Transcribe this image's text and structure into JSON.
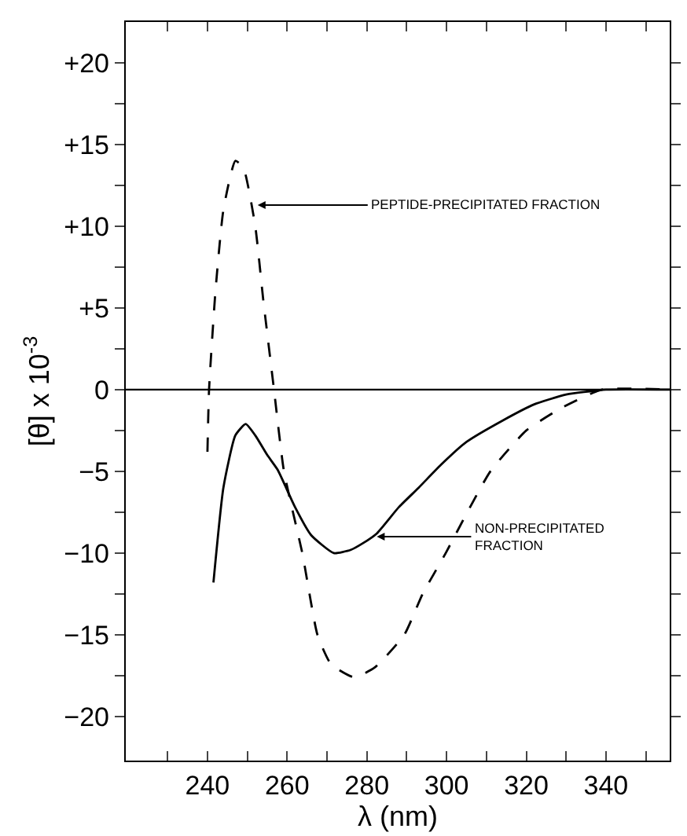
{
  "chart_data": {
    "type": "line",
    "xlabel": "λ (nm)",
    "ylabel": "[θ] x 10$^{-3}$",
    "x": [
      241.5,
      244,
      247,
      249.6,
      252,
      255,
      257.6,
      262,
      266,
      271.7,
      276,
      279,
      282.5,
      288,
      293,
      298.6,
      305,
      314,
      322,
      330,
      340,
      356
    ],
    "series": [
      {
        "color": "#000000",
        "line_style": "solid",
        "values": [
          -11.8,
          -6,
          -2.8,
          -2.1,
          -2.8,
          -4,
          -4.9,
          -7.2,
          -8.9,
          -10,
          -9.8,
          -9.4,
          -8.8,
          -7.2,
          -6,
          -4.6,
          -3.2,
          -1.9,
          -0.9,
          -0.3,
          0,
          0
        ]
      },
      {
        "color": "#000000",
        "line_style": "dashed",
        "x": [
          240,
          240.4,
          242,
          244,
          247,
          249,
          252,
          254,
          256.7,
          259.2,
          263.8,
          267.6,
          271,
          276.8,
          282,
          289.4,
          294,
          299.8,
          305,
          311,
          320,
          329,
          339,
          356
        ],
        "values": [
          -3.8,
          0,
          6,
          11,
          14,
          13.6,
          10,
          5.5,
          0,
          -5,
          -10,
          -15,
          -16.8,
          -17.6,
          -17,
          -15,
          -12.5,
          -10,
          -7.6,
          -5,
          -2.5,
          -1.1,
          0,
          0
        ]
      }
    ],
    "xlim": [
      219.5,
      356
    ],
    "xticks": [
      {
        "value": 230,
        "label": null
      },
      240,
      {
        "value": 250,
        "label": null
      },
      260,
      {
        "value": 270,
        "label": null
      },
      280,
      {
        "value": 290,
        "label": null
      },
      300,
      {
        "value": 310,
        "label": null
      },
      320,
      {
        "value": 330,
        "label": null
      },
      340,
      {
        "value": 350,
        "label": null
      }
    ],
    "ylim": [
      -22.7,
      22.5
    ],
    "yticks": [
      {
        "value": 20,
        "label": "+20"
      },
      {
        "value": 17.5,
        "label": null
      },
      {
        "value": 15,
        "label": "+15"
      },
      {
        "value": 12.5,
        "label": null
      },
      {
        "value": 10,
        "label": "+10"
      },
      {
        "value": 7.5,
        "label": null
      },
      {
        "value": 5,
        "label": "+5"
      },
      {
        "value": 2.5,
        "label": null
      },
      0,
      {
        "value": -2.5,
        "label": null
      },
      {
        "value": -5,
        "label": "−5"
      },
      {
        "value": -7.5,
        "label": null
      },
      {
        "value": -10,
        "label": "−10"
      },
      {
        "value": -12.5,
        "label": null
      },
      {
        "value": -15,
        "label": "−15"
      },
      {
        "value": -17.5,
        "label": null
      },
      {
        "value": -20,
        "label": "−20"
      }
    ],
    "ref_lines": [
      {
        "axis": "y",
        "value": 0,
        "color": "#000000",
        "line_style": "solid"
      }
    ],
    "annotations": [
      {
        "text": "PEPTIDE-PRECIPITATED FRACTION",
        "x": 252.6,
        "y": 11.3
      },
      {
        "text": "NON-PRECIPITATED FRACTION",
        "x": 282.5,
        "y": -9
      }
    ],
    "grid": false,
    "marker": "none"
  }
}
